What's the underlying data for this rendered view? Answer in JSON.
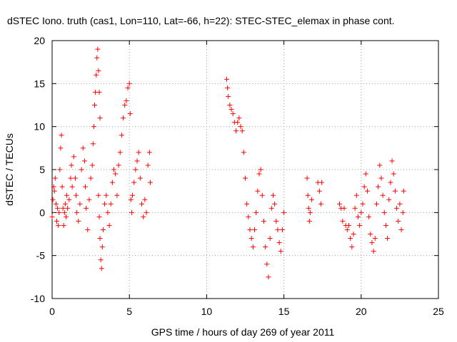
{
  "chart_data": {
    "type": "scatter",
    "title": "dSTEC Iono. truth (cas1, Lon=110, Lat=-66, h=22): STEC-STEC_elemax in phase cont.",
    "xlabel": "GPS time / hours of day 269 of year 2011",
    "ylabel": "dSTEC  / TECUs",
    "xlim": [
      0,
      25
    ],
    "ylim": [
      -10,
      20
    ],
    "x_ticks": [
      0,
      5,
      10,
      15,
      20,
      25
    ],
    "y_ticks": [
      -10,
      -5,
      0,
      5,
      10,
      15,
      20
    ],
    "x_tick_labels": [
      "0",
      "5",
      "10",
      "15",
      "20",
      "25"
    ],
    "y_tick_labels": [
      "-10",
      "-5",
      "0",
      "5",
      "10",
      "15",
      "20"
    ],
    "grid": true,
    "marker": "plus",
    "color": "#ff0000",
    "series": [
      {
        "points": [
          [
            0.0,
            -0.5
          ],
          [
            0.05,
            1.5
          ],
          [
            0.1,
            3.0
          ],
          [
            0.15,
            2.5
          ],
          [
            0.2,
            4.0
          ],
          [
            0.25,
            1.0
          ],
          [
            0.3,
            -1.0
          ],
          [
            0.35,
            0.5
          ],
          [
            0.4,
            -1.5
          ],
          [
            0.45,
            0.0
          ],
          [
            0.5,
            5.0
          ],
          [
            0.55,
            7.5
          ],
          [
            0.6,
            9.0
          ],
          [
            0.65,
            3.0
          ],
          [
            0.7,
            0.5
          ],
          [
            0.75,
            -1.5
          ],
          [
            0.8,
            0.0
          ],
          [
            0.85,
            1.0
          ],
          [
            0.9,
            -0.5
          ],
          [
            0.95,
            2.0
          ],
          [
            1.0,
            0.5
          ],
          [
            1.1,
            1.5
          ],
          [
            1.2,
            4.0
          ],
          [
            1.25,
            5.5
          ],
          [
            1.3,
            3.0
          ],
          [
            1.4,
            6.5
          ],
          [
            1.5,
            4.0
          ],
          [
            1.55,
            2.0
          ],
          [
            1.6,
            0.0
          ],
          [
            1.7,
            -1.0
          ],
          [
            1.8,
            1.0
          ],
          [
            1.9,
            5.0
          ],
          [
            2.0,
            7.5
          ],
          [
            2.1,
            6.0
          ],
          [
            2.15,
            3.0
          ],
          [
            2.2,
            0.5
          ],
          [
            2.3,
            -2.0
          ],
          [
            2.4,
            1.5
          ],
          [
            2.5,
            4.0
          ],
          [
            2.6,
            5.5
          ],
          [
            2.65,
            8.0
          ],
          [
            2.7,
            10.0
          ],
          [
            2.75,
            12.5
          ],
          [
            2.8,
            14.0
          ],
          [
            2.85,
            16.0
          ],
          [
            2.9,
            18.0
          ],
          [
            2.95,
            19.0
          ],
          [
            3.0,
            16.5
          ],
          [
            3.05,
            14.0
          ],
          [
            3.1,
            11.0
          ],
          [
            3.0,
            2.0
          ],
          [
            3.05,
            -0.5
          ],
          [
            3.1,
            -3.0
          ],
          [
            3.15,
            -5.5
          ],
          [
            3.2,
            -6.5
          ],
          [
            3.25,
            -4.0
          ],
          [
            3.3,
            -2.0
          ],
          [
            3.4,
            1.0
          ],
          [
            3.5,
            2.0
          ],
          [
            3.6,
            0.0
          ],
          [
            3.7,
            -1.5
          ],
          [
            3.8,
            1.0
          ],
          [
            3.9,
            3.5
          ],
          [
            4.0,
            5.0
          ],
          [
            4.1,
            4.5
          ],
          [
            4.2,
            2.0
          ],
          [
            4.3,
            5.5
          ],
          [
            4.4,
            7.0
          ],
          [
            4.5,
            9.0
          ],
          [
            4.6,
            11.0
          ],
          [
            4.7,
            12.5
          ],
          [
            4.8,
            13.0
          ],
          [
            4.9,
            14.5
          ],
          [
            5.0,
            15.0
          ],
          [
            5.05,
            11.5
          ],
          [
            5.1,
            1.5
          ],
          [
            5.15,
            0.0
          ],
          [
            5.2,
            2.0
          ],
          [
            5.3,
            3.5
          ],
          [
            5.4,
            5.0
          ],
          [
            5.5,
            6.0
          ],
          [
            5.6,
            7.0
          ],
          [
            5.7,
            4.0
          ],
          [
            5.8,
            1.0
          ],
          [
            5.9,
            -0.5
          ],
          [
            6.0,
            1.5
          ],
          [
            6.1,
            0.0
          ],
          [
            6.2,
            5.5
          ],
          [
            6.3,
            7.0
          ],
          [
            6.35,
            3.5
          ],
          [
            11.3,
            15.5
          ],
          [
            11.35,
            14.5
          ],
          [
            11.4,
            13.5
          ],
          [
            11.5,
            12.5
          ],
          [
            11.6,
            12.0
          ],
          [
            11.7,
            11.5
          ],
          [
            11.8,
            10.5
          ],
          [
            11.9,
            9.5
          ],
          [
            12.0,
            10.5
          ],
          [
            12.1,
            11.0
          ],
          [
            12.2,
            10.0
          ],
          [
            12.3,
            9.5
          ],
          [
            12.4,
            7.0
          ],
          [
            12.5,
            4.0
          ],
          [
            12.6,
            1.0
          ],
          [
            12.7,
            -0.5
          ],
          [
            12.8,
            -2.0
          ],
          [
            12.9,
            -3.0
          ],
          [
            13.0,
            -4.0
          ],
          [
            13.1,
            -2.0
          ],
          [
            13.2,
            0.0
          ],
          [
            13.3,
            2.5
          ],
          [
            13.4,
            4.5
          ],
          [
            13.5,
            5.0
          ],
          [
            13.6,
            2.0
          ],
          [
            13.7,
            -1.0
          ],
          [
            13.8,
            -4.0
          ],
          [
            13.9,
            -6.0
          ],
          [
            14.0,
            -7.5
          ],
          [
            14.1,
            -3.0
          ],
          [
            14.2,
            0.5
          ],
          [
            14.3,
            2.0
          ],
          [
            14.4,
            1.0
          ],
          [
            14.5,
            -1.0
          ],
          [
            14.6,
            -2.0
          ],
          [
            14.7,
            -3.5
          ],
          [
            14.8,
            -4.5
          ],
          [
            14.9,
            -2.0
          ],
          [
            15.0,
            0.0
          ],
          [
            16.5,
            4.0
          ],
          [
            16.55,
            2.0
          ],
          [
            16.6,
            0.5
          ],
          [
            16.65,
            -1.0
          ],
          [
            16.7,
            0.0
          ],
          [
            16.8,
            1.5
          ],
          [
            17.2,
            3.5
          ],
          [
            17.3,
            2.5
          ],
          [
            17.4,
            1.0
          ],
          [
            17.45,
            3.5
          ],
          [
            18.6,
            1.0
          ],
          [
            18.7,
            0.5
          ],
          [
            18.8,
            -1.0
          ],
          [
            18.9,
            0.5
          ],
          [
            19.0,
            -1.5
          ],
          [
            19.1,
            -2.0
          ],
          [
            19.2,
            -1.5
          ],
          [
            19.3,
            -3.0
          ],
          [
            19.4,
            -4.0
          ],
          [
            19.5,
            -2.5
          ],
          [
            19.6,
            0.5
          ],
          [
            19.7,
            2.0
          ],
          [
            19.8,
            -0.5
          ],
          [
            19.9,
            -1.5
          ],
          [
            20.0,
            0.0
          ],
          [
            20.1,
            1.0
          ],
          [
            20.2,
            3.0
          ],
          [
            20.3,
            4.5
          ],
          [
            20.4,
            2.5
          ],
          [
            20.5,
            -0.5
          ],
          [
            20.6,
            -2.5
          ],
          [
            20.7,
            -3.5
          ],
          [
            20.8,
            -4.5
          ],
          [
            20.9,
            -3.0
          ],
          [
            21.0,
            1.0
          ],
          [
            21.1,
            3.0
          ],
          [
            21.2,
            5.5
          ],
          [
            21.3,
            4.0
          ],
          [
            21.4,
            2.0
          ],
          [
            21.5,
            0.0
          ],
          [
            21.6,
            -1.5
          ],
          [
            21.7,
            -3.0
          ],
          [
            21.8,
            1.5
          ],
          [
            21.9,
            3.5
          ],
          [
            22.0,
            6.0
          ],
          [
            22.1,
            4.5
          ],
          [
            22.2,
            2.5
          ],
          [
            22.3,
            0.5
          ],
          [
            22.4,
            -1.0
          ],
          [
            22.5,
            1.0
          ],
          [
            22.6,
            -2.0
          ],
          [
            22.7,
            0.0
          ],
          [
            22.75,
            2.5
          ]
        ]
      }
    ]
  }
}
